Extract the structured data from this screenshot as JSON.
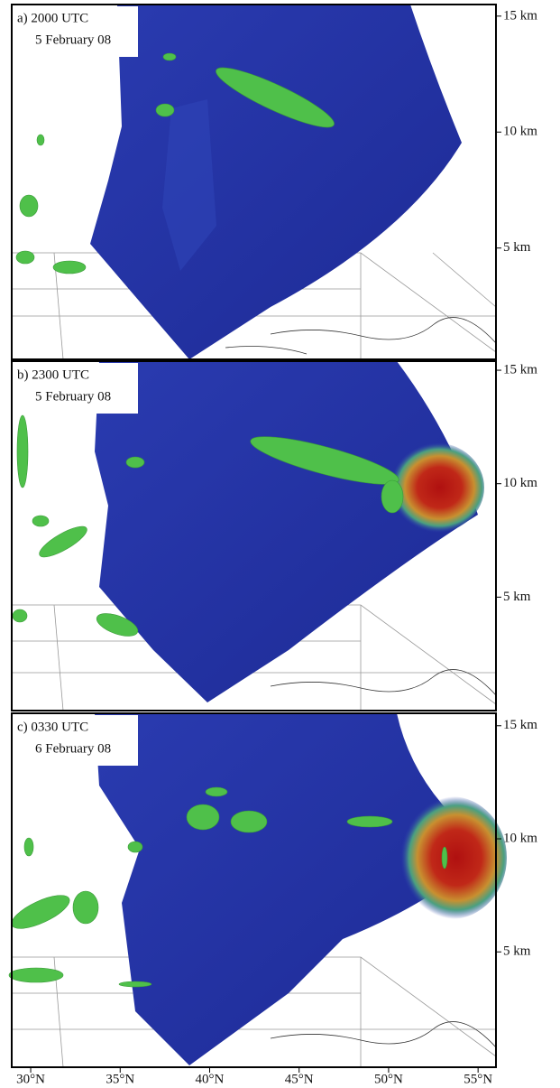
{
  "chart_data": [
    {
      "type": "render3d",
      "title": "a) 2000 UTC",
      "subtitle": "5 February 08",
      "ylim": [
        0.2,
        15.5
      ],
      "yticks": [
        {
          "value": 15,
          "label": "15 km"
        },
        {
          "value": 10,
          "label": "10 km"
        },
        {
          "value": 5,
          "label": "5 km"
        }
      ]
    },
    {
      "type": "render3d",
      "title": "b) 2300 UTC",
      "subtitle": "5 February 08",
      "ylim": [
        0,
        15.4
      ],
      "yticks": [
        {
          "value": 15,
          "label": "15 km"
        },
        {
          "value": 10,
          "label": "10 km"
        },
        {
          "value": 5,
          "label": "5 km"
        }
      ]
    },
    {
      "type": "render3d",
      "title": "c) 0330 UTC",
      "subtitle": "6 February 08",
      "ylim": [
        -0.1,
        15.55
      ],
      "yticks": [
        {
          "value": 15,
          "label": "15 km"
        },
        {
          "value": 10,
          "label": "10 km"
        },
        {
          "value": 5,
          "label": "5 km"
        }
      ],
      "xlim": [
        28.94,
        56.0
      ],
      "xticks": [
        {
          "value": 30,
          "label": "30°N"
        },
        {
          "value": 35,
          "label": "35°N"
        },
        {
          "value": 40,
          "label": "40°N"
        },
        {
          "value": 45,
          "label": "45°N"
        },
        {
          "value": 50,
          "label": "50°N"
        },
        {
          "value": 55,
          "label": "55°N"
        }
      ]
    }
  ]
}
